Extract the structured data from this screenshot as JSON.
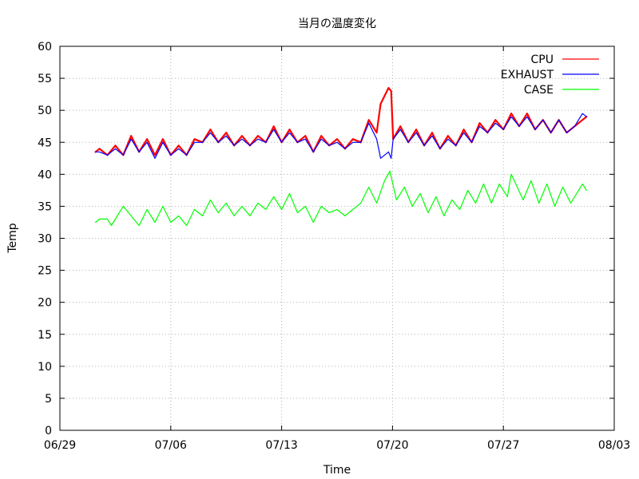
{
  "chart_data": {
    "type": "line",
    "title": "当月の温度変化",
    "xlabel": "Time",
    "ylabel": "Temp",
    "xlim": [
      "2014-06-29",
      "2014-08-03"
    ],
    "ylim": [
      0,
      60
    ],
    "y_ticks": [
      0,
      5,
      10,
      15,
      20,
      25,
      30,
      35,
      40,
      45,
      50,
      55,
      60
    ],
    "x_ticks": [
      {
        "date": "2014-06-29",
        "label": "06/29"
      },
      {
        "date": "2014-07-06",
        "label": "07/06"
      },
      {
        "date": "2014-07-13",
        "label": "07/13"
      },
      {
        "date": "2014-07-20",
        "label": "07/20"
      },
      {
        "date": "2014-07-27",
        "label": "07/27"
      },
      {
        "date": "2014-08-03",
        "label": "08/03"
      }
    ],
    "grid": true,
    "legend_position": "top-right",
    "series": [
      {
        "name": "CPU",
        "color": "#ff0000",
        "points": [
          [
            "2014-07-01 06:00",
            43.5
          ],
          [
            "2014-07-01 12:00",
            44.0
          ],
          [
            "2014-07-02 00:00",
            43.0
          ],
          [
            "2014-07-02 12:00",
            44.5
          ],
          [
            "2014-07-03 00:00",
            43.0
          ],
          [
            "2014-07-03 12:00",
            46.0
          ],
          [
            "2014-07-04 00:00",
            43.5
          ],
          [
            "2014-07-04 12:00",
            45.5
          ],
          [
            "2014-07-05 00:00",
            43.0
          ],
          [
            "2014-07-05 12:00",
            45.5
          ],
          [
            "2014-07-06 00:00",
            43.0
          ],
          [
            "2014-07-06 12:00",
            44.5
          ],
          [
            "2014-07-07 00:00",
            43.0
          ],
          [
            "2014-07-07 12:00",
            45.5
          ],
          [
            "2014-07-08 00:00",
            45.0
          ],
          [
            "2014-07-08 12:00",
            47.0
          ],
          [
            "2014-07-09 00:00",
            45.0
          ],
          [
            "2014-07-09 12:00",
            46.5
          ],
          [
            "2014-07-10 00:00",
            44.5
          ],
          [
            "2014-07-10 12:00",
            46.0
          ],
          [
            "2014-07-11 00:00",
            44.5
          ],
          [
            "2014-07-11 12:00",
            46.0
          ],
          [
            "2014-07-12 00:00",
            45.0
          ],
          [
            "2014-07-12 12:00",
            47.5
          ],
          [
            "2014-07-13 00:00",
            45.0
          ],
          [
            "2014-07-13 12:00",
            47.0
          ],
          [
            "2014-07-14 00:00",
            45.0
          ],
          [
            "2014-07-14 12:00",
            46.0
          ],
          [
            "2014-07-15 00:00",
            43.5
          ],
          [
            "2014-07-15 12:00",
            46.0
          ],
          [
            "2014-07-16 00:00",
            44.5
          ],
          [
            "2014-07-16 12:00",
            45.5
          ],
          [
            "2014-07-17 00:00",
            44.0
          ],
          [
            "2014-07-17 12:00",
            45.5
          ],
          [
            "2014-07-18 00:00",
            45.0
          ],
          [
            "2014-07-18 12:00",
            48.5
          ],
          [
            "2014-07-19 00:00",
            46.5
          ],
          [
            "2014-07-19 06:00",
            51.0
          ],
          [
            "2014-07-19 18:00",
            53.5
          ],
          [
            "2014-07-19 22:00",
            53.0
          ],
          [
            "2014-07-20 01:00",
            45.5
          ],
          [
            "2014-07-20 12:00",
            47.5
          ],
          [
            "2014-07-21 00:00",
            45.0
          ],
          [
            "2014-07-21 12:00",
            47.0
          ],
          [
            "2014-07-22 00:00",
            44.5
          ],
          [
            "2014-07-22 12:00",
            46.5
          ],
          [
            "2014-07-23 00:00",
            44.0
          ],
          [
            "2014-07-23 12:00",
            46.0
          ],
          [
            "2014-07-24 00:00",
            44.5
          ],
          [
            "2014-07-24 12:00",
            47.0
          ],
          [
            "2014-07-25 00:00",
            45.0
          ],
          [
            "2014-07-25 12:00",
            48.0
          ],
          [
            "2014-07-26 00:00",
            46.5
          ],
          [
            "2014-07-26 12:00",
            48.5
          ],
          [
            "2014-07-27 00:00",
            47.0
          ],
          [
            "2014-07-27 12:00",
            49.5
          ],
          [
            "2014-07-28 00:00",
            47.5
          ],
          [
            "2014-07-28 12:00",
            49.5
          ],
          [
            "2014-07-29 00:00",
            47.0
          ],
          [
            "2014-07-29 12:00",
            48.5
          ],
          [
            "2014-07-30 00:00",
            46.5
          ],
          [
            "2014-07-30 12:00",
            48.5
          ],
          [
            "2014-07-31 00:00",
            46.5
          ],
          [
            "2014-07-31 12:00",
            47.5
          ],
          [
            "2014-08-01 00:00",
            48.5
          ],
          [
            "2014-08-01 06:00",
            49.0
          ]
        ]
      },
      {
        "name": "EXHAUST",
        "color": "#0000ff",
        "points": [
          [
            "2014-07-01 06:00",
            43.5
          ],
          [
            "2014-07-01 12:00",
            43.5
          ],
          [
            "2014-07-02 00:00",
            43.0
          ],
          [
            "2014-07-02 12:00",
            44.0
          ],
          [
            "2014-07-03 00:00",
            43.0
          ],
          [
            "2014-07-03 12:00",
            45.5
          ],
          [
            "2014-07-04 00:00",
            43.5
          ],
          [
            "2014-07-04 12:00",
            45.0
          ],
          [
            "2014-07-05 00:00",
            42.5
          ],
          [
            "2014-07-05 12:00",
            45.0
          ],
          [
            "2014-07-06 00:00",
            43.0
          ],
          [
            "2014-07-06 12:00",
            44.0
          ],
          [
            "2014-07-07 00:00",
            43.0
          ],
          [
            "2014-07-07 12:00",
            45.0
          ],
          [
            "2014-07-08 00:00",
            45.0
          ],
          [
            "2014-07-08 12:00",
            46.5
          ],
          [
            "2014-07-09 00:00",
            45.0
          ],
          [
            "2014-07-09 12:00",
            46.0
          ],
          [
            "2014-07-10 00:00",
            44.5
          ],
          [
            "2014-07-10 12:00",
            45.5
          ],
          [
            "2014-07-11 00:00",
            44.5
          ],
          [
            "2014-07-11 12:00",
            45.5
          ],
          [
            "2014-07-12 00:00",
            45.0
          ],
          [
            "2014-07-12 12:00",
            47.0
          ],
          [
            "2014-07-13 00:00",
            45.0
          ],
          [
            "2014-07-13 12:00",
            46.5
          ],
          [
            "2014-07-14 00:00",
            45.0
          ],
          [
            "2014-07-14 12:00",
            45.5
          ],
          [
            "2014-07-15 00:00",
            43.5
          ],
          [
            "2014-07-15 12:00",
            45.5
          ],
          [
            "2014-07-16 00:00",
            44.5
          ],
          [
            "2014-07-16 12:00",
            45.0
          ],
          [
            "2014-07-17 00:00",
            44.0
          ],
          [
            "2014-07-17 12:00",
            45.0
          ],
          [
            "2014-07-18 00:00",
            45.0
          ],
          [
            "2014-07-18 12:00",
            48.0
          ],
          [
            "2014-07-19 00:00",
            45.5
          ],
          [
            "2014-07-19 06:00",
            42.5
          ],
          [
            "2014-07-19 18:00",
            43.5
          ],
          [
            "2014-07-19 22:00",
            42.5
          ],
          [
            "2014-07-20 01:00",
            45.5
          ],
          [
            "2014-07-20 12:00",
            47.0
          ],
          [
            "2014-07-21 00:00",
            45.0
          ],
          [
            "2014-07-21 12:00",
            46.5
          ],
          [
            "2014-07-22 00:00",
            44.5
          ],
          [
            "2014-07-22 12:00",
            46.0
          ],
          [
            "2014-07-23 00:00",
            44.0
          ],
          [
            "2014-07-23 12:00",
            45.5
          ],
          [
            "2014-07-24 00:00",
            44.5
          ],
          [
            "2014-07-24 12:00",
            46.5
          ],
          [
            "2014-07-25 00:00",
            45.0
          ],
          [
            "2014-07-25 12:00",
            47.5
          ],
          [
            "2014-07-26 00:00",
            46.5
          ],
          [
            "2014-07-26 12:00",
            48.0
          ],
          [
            "2014-07-27 00:00",
            47.0
          ],
          [
            "2014-07-27 12:00",
            49.0
          ],
          [
            "2014-07-28 00:00",
            47.5
          ],
          [
            "2014-07-28 12:00",
            49.0
          ],
          [
            "2014-07-29 00:00",
            47.0
          ],
          [
            "2014-07-29 12:00",
            48.5
          ],
          [
            "2014-07-30 00:00",
            46.5
          ],
          [
            "2014-07-30 12:00",
            48.5
          ],
          [
            "2014-07-31 00:00",
            46.5
          ],
          [
            "2014-07-31 12:00",
            47.5
          ],
          [
            "2014-08-01 00:00",
            49.5
          ],
          [
            "2014-08-01 06:00",
            49.0
          ]
        ]
      },
      {
        "name": "CASE",
        "color": "#00ff00",
        "points": [
          [
            "2014-07-01 06:00",
            32.5
          ],
          [
            "2014-07-01 12:00",
            33.0
          ],
          [
            "2014-07-02 00:00",
            33.0
          ],
          [
            "2014-07-02 06:00",
            32.0
          ],
          [
            "2014-07-03 00:00",
            35.0
          ],
          [
            "2014-07-03 12:00",
            33.5
          ],
          [
            "2014-07-04 00:00",
            32.0
          ],
          [
            "2014-07-04 12:00",
            34.5
          ],
          [
            "2014-07-05 00:00",
            32.5
          ],
          [
            "2014-07-05 12:00",
            35.0
          ],
          [
            "2014-07-06 00:00",
            32.5
          ],
          [
            "2014-07-06 12:00",
            33.5
          ],
          [
            "2014-07-07 00:00",
            32.0
          ],
          [
            "2014-07-07 12:00",
            34.5
          ],
          [
            "2014-07-08 00:00",
            33.5
          ],
          [
            "2014-07-08 12:00",
            36.0
          ],
          [
            "2014-07-09 00:00",
            34.0
          ],
          [
            "2014-07-09 12:00",
            35.5
          ],
          [
            "2014-07-10 00:00",
            33.5
          ],
          [
            "2014-07-10 12:00",
            35.0
          ],
          [
            "2014-07-11 00:00",
            33.5
          ],
          [
            "2014-07-11 12:00",
            35.5
          ],
          [
            "2014-07-12 00:00",
            34.5
          ],
          [
            "2014-07-12 12:00",
            36.5
          ],
          [
            "2014-07-13 00:00",
            34.5
          ],
          [
            "2014-07-13 12:00",
            37.0
          ],
          [
            "2014-07-14 00:00",
            34.0
          ],
          [
            "2014-07-14 12:00",
            35.0
          ],
          [
            "2014-07-15 00:00",
            32.5
          ],
          [
            "2014-07-15 12:00",
            35.0
          ],
          [
            "2014-07-16 00:00",
            34.0
          ],
          [
            "2014-07-16 12:00",
            34.5
          ],
          [
            "2014-07-17 00:00",
            33.5
          ],
          [
            "2014-07-17 12:00",
            34.5
          ],
          [
            "2014-07-18 00:00",
            35.5
          ],
          [
            "2014-07-18 12:00",
            38.0
          ],
          [
            "2014-07-19 00:00",
            35.5
          ],
          [
            "2014-07-19 12:00",
            39.0
          ],
          [
            "2014-07-19 20:00",
            40.5
          ],
          [
            "2014-07-20 06:00",
            36.0
          ],
          [
            "2014-07-20 18:00",
            38.0
          ],
          [
            "2014-07-21 06:00",
            35.0
          ],
          [
            "2014-07-21 18:00",
            37.0
          ],
          [
            "2014-07-22 06:00",
            34.0
          ],
          [
            "2014-07-22 18:00",
            36.5
          ],
          [
            "2014-07-23 06:00",
            33.5
          ],
          [
            "2014-07-23 18:00",
            36.0
          ],
          [
            "2014-07-24 06:00",
            34.5
          ],
          [
            "2014-07-24 18:00",
            37.5
          ],
          [
            "2014-07-25 06:00",
            35.5
          ],
          [
            "2014-07-25 18:00",
            38.5
          ],
          [
            "2014-07-26 06:00",
            35.5
          ],
          [
            "2014-07-26 18:00",
            38.5
          ],
          [
            "2014-07-27 06:00",
            36.5
          ],
          [
            "2014-07-27 12:00",
            40.0
          ],
          [
            "2014-07-28 06:00",
            36.0
          ],
          [
            "2014-07-28 18:00",
            39.0
          ],
          [
            "2014-07-29 06:00",
            35.5
          ],
          [
            "2014-07-29 18:00",
            38.5
          ],
          [
            "2014-07-30 06:00",
            35.0
          ],
          [
            "2014-07-30 18:00",
            38.0
          ],
          [
            "2014-07-31 06:00",
            35.5
          ],
          [
            "2014-07-31 18:00",
            37.5
          ],
          [
            "2014-08-01 00:00",
            38.5
          ],
          [
            "2014-08-01 06:00",
            37.5
          ]
        ]
      }
    ]
  }
}
